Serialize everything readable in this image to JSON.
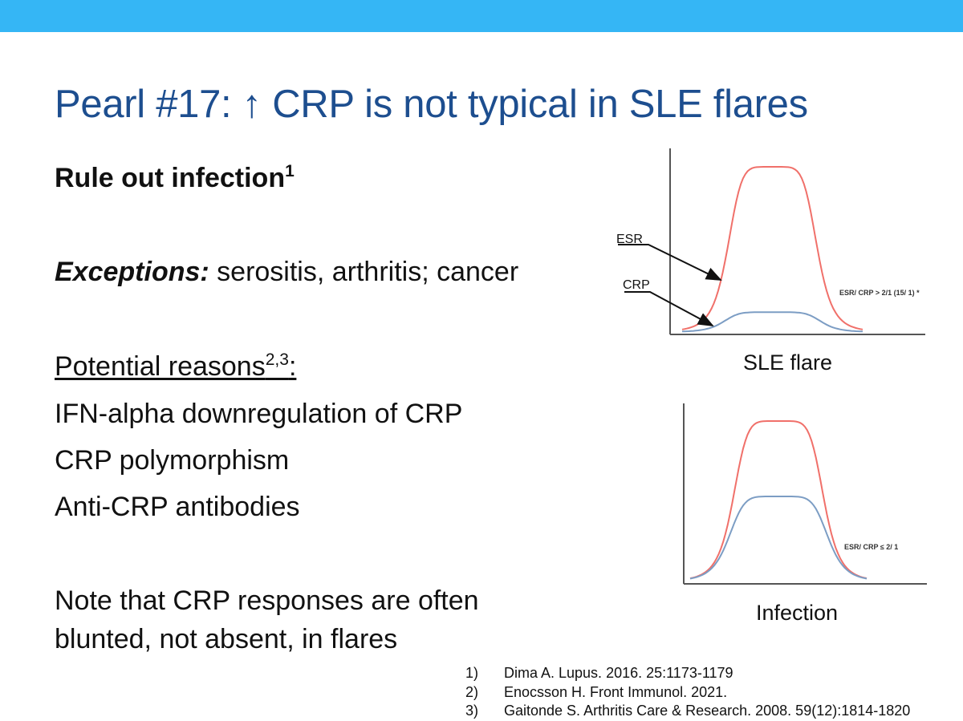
{
  "header": {
    "accent_color": "#35B6F5"
  },
  "title": "Pearl #17: ↑ CRP is not typical in SLE flares",
  "title_color": "#1D4E8F",
  "rule_out": {
    "text": "Rule out infection",
    "sup": "1"
  },
  "exceptions": {
    "label": "Exceptions:",
    "text": " serositis, arthritis; cancer"
  },
  "reasons": {
    "heading": "Potential reasons",
    "sup": "2,3",
    "suffix": ":"
  },
  "reasons_list": [
    "IFN-alpha downregulation of CRP",
    "CRP polymorphism",
    "Anti-CRP antibodies"
  ],
  "note": {
    "line1": "Note that CRP responses are often",
    "line2": "blunted, not absent, in flares"
  },
  "chart_data": [
    {
      "type": "line",
      "title": "SLE flare",
      "series": [
        {
          "name": "ESR",
          "color": "#F0706A",
          "level": 1.0
        },
        {
          "name": "CRP",
          "color": "#7C9DC4",
          "level": 0.12
        }
      ],
      "annotation": "ESR/ CRP > 2/1 (15/ 1) *"
    },
    {
      "type": "line",
      "title": "Infection",
      "series": [
        {
          "name": "ESR",
          "color": "#F0706A",
          "level": 1.0
        },
        {
          "name": "CRP",
          "color": "#7C9DC4",
          "level": 0.53
        }
      ],
      "annotation": "ESR/ CRP ≤ 2/ 1"
    }
  ],
  "references": [
    {
      "num": "1)",
      "text": "Dima A. Lupus. 2016. 25:1173-1179"
    },
    {
      "num": "2)",
      "text": "Enocsson H. Front Immunol. 2021."
    },
    {
      "num": "3)",
      "text": "Gaitonde S. Arthritis Care & Research. 2008. 59(12):1814-1820"
    }
  ]
}
